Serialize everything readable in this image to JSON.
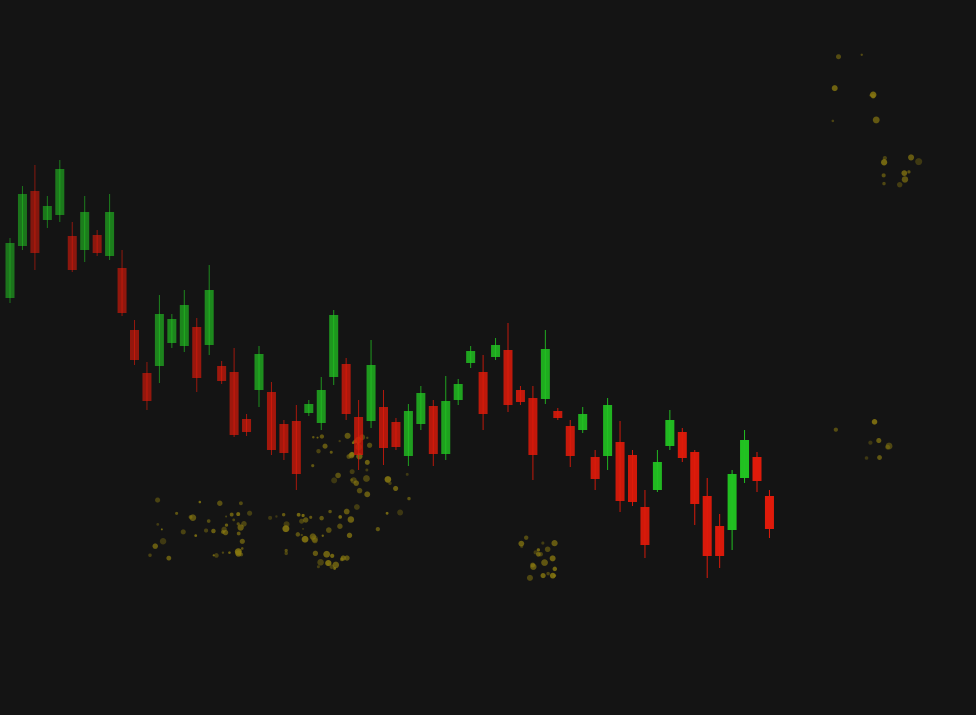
{
  "chart_data": {
    "type": "candlestick",
    "up_color": "#22c422",
    "down_color": "#e01a0a",
    "ylim": [
      0,
      715
    ],
    "open": [
      417,
      469,
      524,
      495,
      500,
      479,
      465,
      480,
      459,
      447,
      385,
      342,
      349,
      372,
      369,
      388,
      370,
      349,
      343,
      296,
      325,
      323,
      291,
      294,
      302,
      292,
      338,
      351,
      298,
      294,
      308,
      293,
      259,
      291,
      309,
      261,
      315,
      352,
      343,
      358,
      365,
      325,
      317,
      316,
      304,
      289,
      285,
      258,
      259,
      273,
      260,
      208,
      225,
      269,
      283,
      263,
      219,
      189,
      185,
      237,
      258,
      219
    ],
    "high": [
      477,
      529,
      550,
      519,
      555,
      493,
      519,
      485,
      521,
      465,
      395,
      353,
      420,
      401,
      425,
      397,
      450,
      354,
      367,
      301,
      369,
      333,
      295,
      310,
      315,
      338,
      405,
      357,
      315,
      375,
      325,
      297,
      311,
      329,
      315,
      339,
      336,
      369,
      360,
      377,
      392,
      329,
      329,
      385,
      307,
      295,
      308,
      265,
      317,
      294,
      265,
      225,
      265,
      305,
      287,
      265,
      237,
      201,
      245,
      285,
      263,
      225
    ],
    "low": [
      412,
      465,
      445,
      487,
      493,
      443,
      453,
      459,
      455,
      399,
      350,
      305,
      332,
      367,
      363,
      323,
      360,
      331,
      278,
      279,
      308,
      260,
      255,
      225,
      299,
      285,
      330,
      295,
      245,
      287,
      250,
      265,
      249,
      285,
      249,
      255,
      310,
      347,
      285,
      355,
      303,
      310,
      235,
      311,
      295,
      248,
      282,
      225,
      245,
      203,
      209,
      157,
      223,
      265,
      253,
      190,
      137,
      147,
      165,
      232,
      223,
      177
    ],
    "close": [
      472,
      521,
      462,
      509,
      546,
      445,
      503,
      462,
      503,
      402,
      355,
      314,
      401,
      396,
      410,
      337,
      425,
      334,
      280,
      283,
      361,
      265,
      262,
      241,
      311,
      325,
      400,
      301,
      260,
      350,
      267,
      268,
      304,
      322,
      261,
      314,
      331,
      364,
      301,
      370,
      310,
      313,
      260,
      366,
      297,
      259,
      301,
      236,
      310,
      214,
      213,
      170,
      253,
      295,
      257,
      211,
      159,
      159,
      241,
      275,
      234,
      186
    ]
  }
}
